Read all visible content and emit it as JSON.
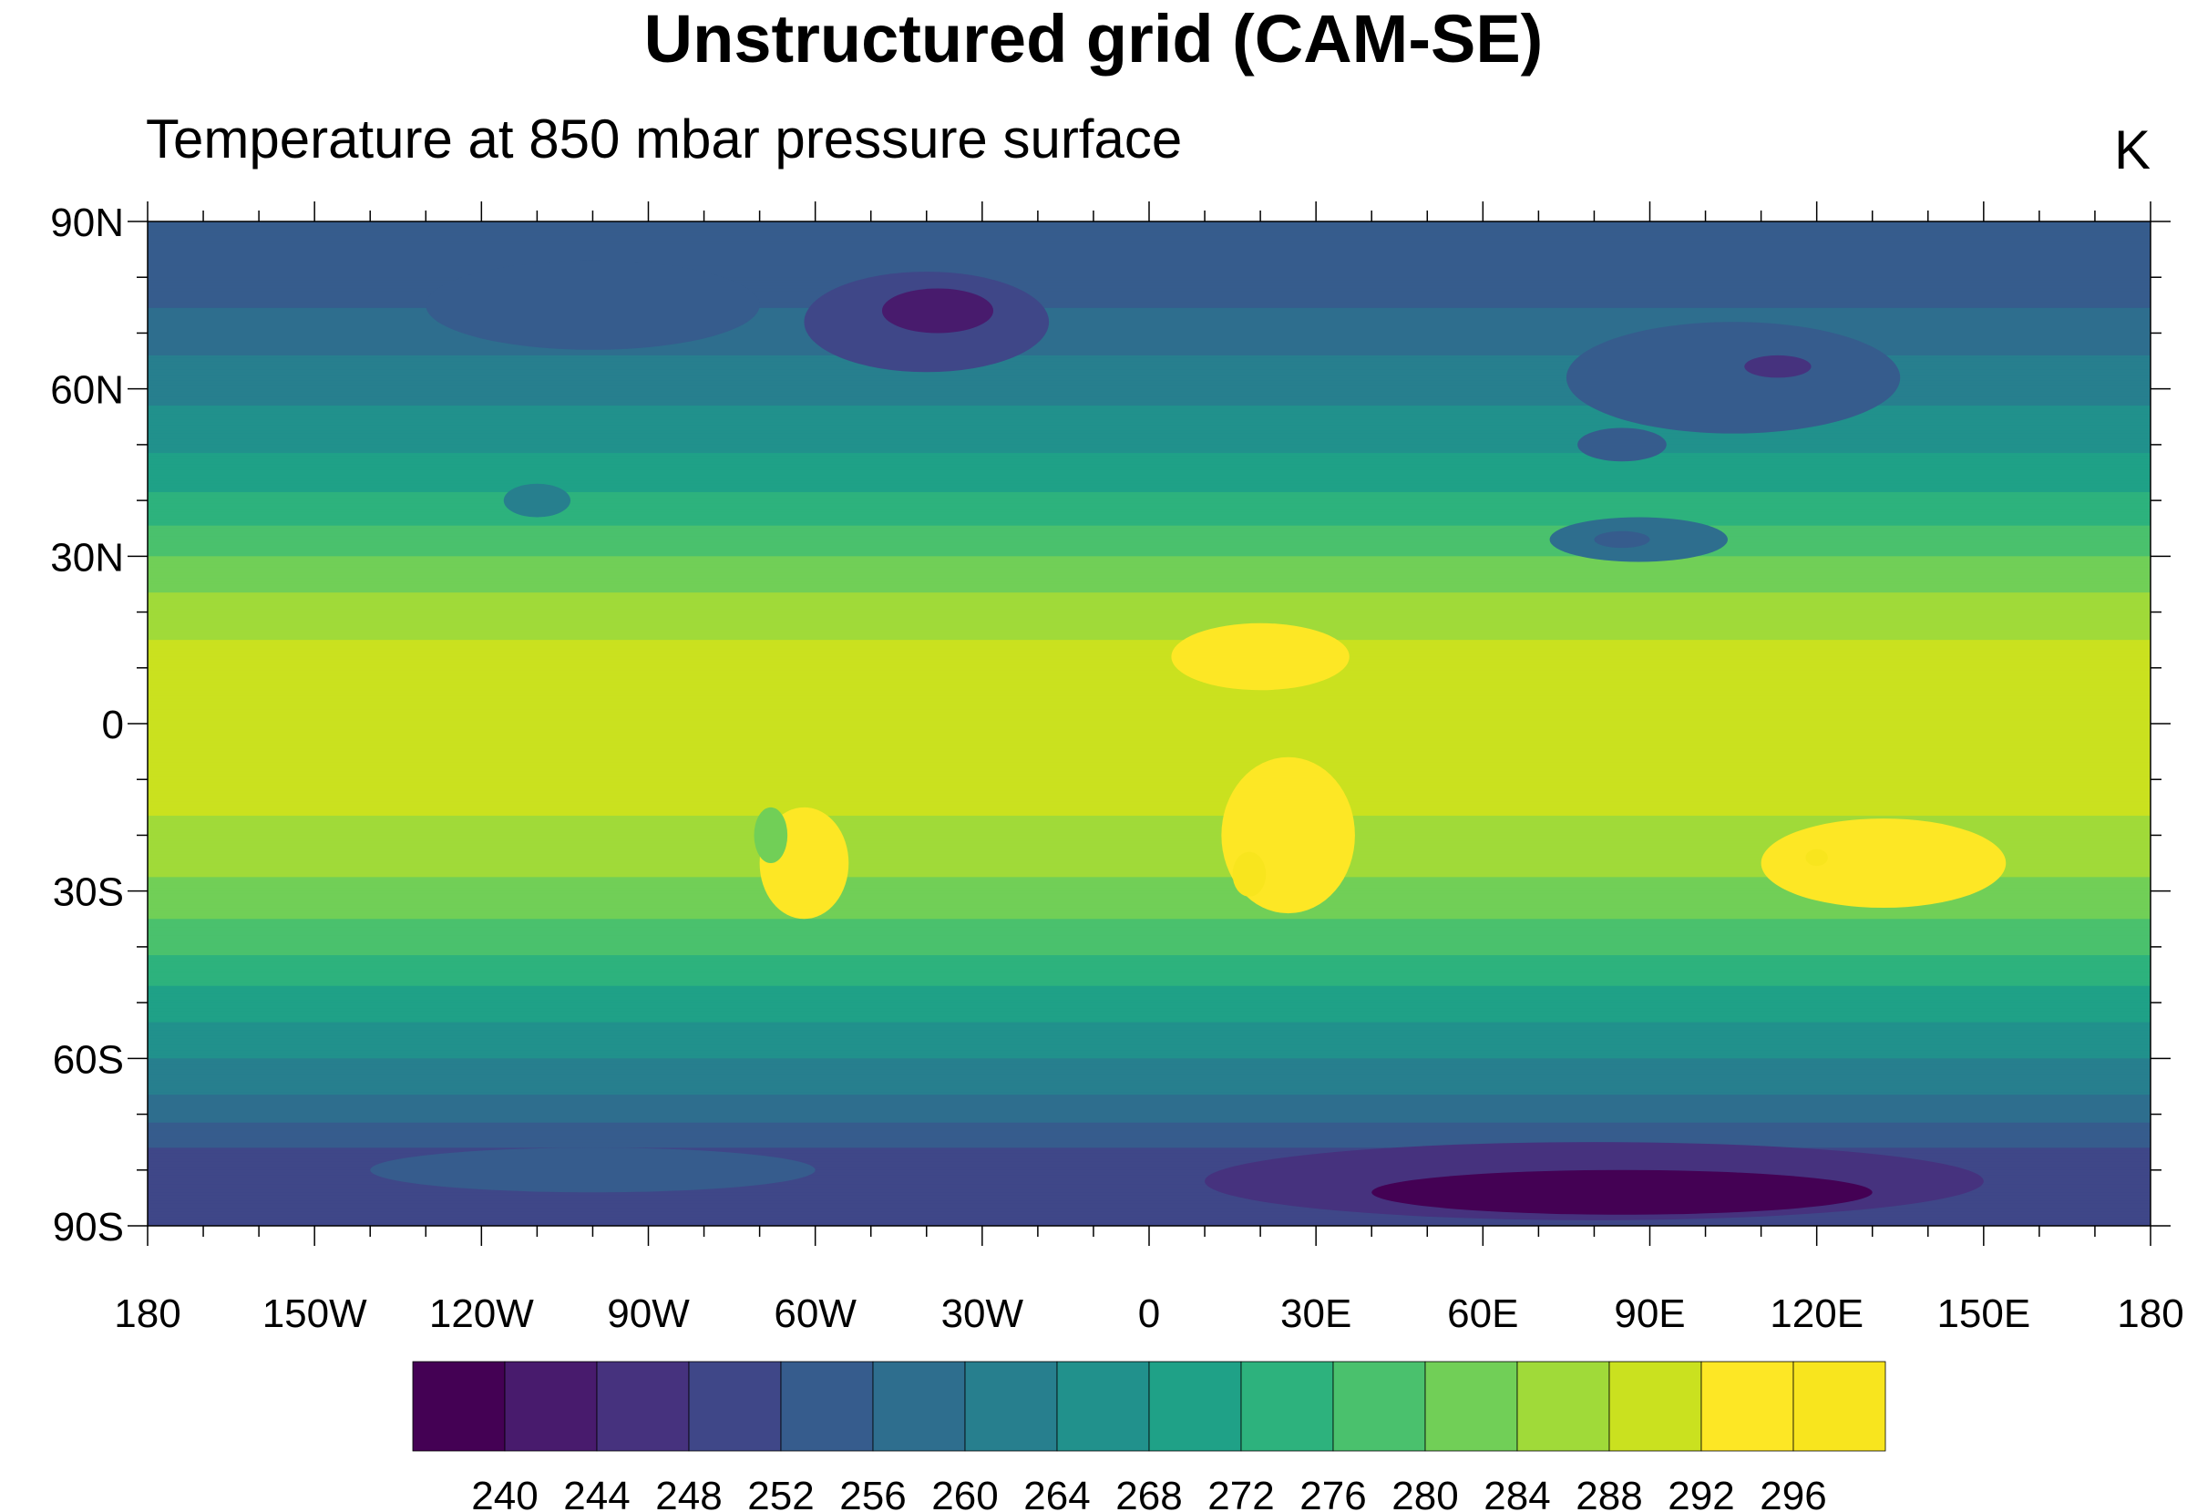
{
  "chart_data": {
    "type": "heatmap",
    "title": "Unstructured grid (CAM-SE)",
    "subtitle": "Temperature at 850 mbar pressure surface",
    "units": "K",
    "xlim": [
      -180,
      180
    ],
    "ylim": [
      -90,
      90
    ],
    "x_ticks": [
      {
        "value": -180,
        "label": "180"
      },
      {
        "value": -150,
        "label": "150W"
      },
      {
        "value": -120,
        "label": "120W"
      },
      {
        "value": -90,
        "label": "90W"
      },
      {
        "value": -60,
        "label": "60W"
      },
      {
        "value": -30,
        "label": "30W"
      },
      {
        "value": 0,
        "label": "0"
      },
      {
        "value": 30,
        "label": "30E"
      },
      {
        "value": 60,
        "label": "60E"
      },
      {
        "value": 90,
        "label": "90E"
      },
      {
        "value": 120,
        "label": "120E"
      },
      {
        "value": 150,
        "label": "150E"
      },
      {
        "value": 180,
        "label": "180"
      }
    ],
    "y_ticks": [
      {
        "value": 90,
        "label": "90N"
      },
      {
        "value": 60,
        "label": "60N"
      },
      {
        "value": 30,
        "label": "30N"
      },
      {
        "value": 0,
        "label": "0"
      },
      {
        "value": -30,
        "label": "30S"
      },
      {
        "value": -60,
        "label": "60S"
      },
      {
        "value": -90,
        "label": "90S"
      }
    ],
    "levels": [
      240,
      244,
      248,
      252,
      256,
      260,
      264,
      268,
      272,
      276,
      280,
      284,
      288,
      292,
      296
    ],
    "colors": [
      "#440154",
      "#481b6d",
      "#46327e",
      "#3f4788",
      "#365c8d",
      "#2e6e8e",
      "#277f8e",
      "#21918c",
      "#1fa187",
      "#2db27d",
      "#4ac16d",
      "#71cf57",
      "#a0da39",
      "#cae11f",
      "#fde725",
      "#f8e51e"
    ],
    "zonal_profile": [
      {
        "lat": 90,
        "t": 254
      },
      {
        "lat": 82,
        "t": 253
      },
      {
        "lat": 72,
        "t": 257
      },
      {
        "lat": 62,
        "t": 262
      },
      {
        "lat": 50,
        "t": 267
      },
      {
        "lat": 40,
        "t": 273
      },
      {
        "lat": 30,
        "t": 280
      },
      {
        "lat": 20,
        "t": 286
      },
      {
        "lat": 10,
        "t": 290
      },
      {
        "lat": 0,
        "t": 290.5
      },
      {
        "lat": -10,
        "t": 290
      },
      {
        "lat": -20,
        "t": 287
      },
      {
        "lat": -30,
        "t": 283
      },
      {
        "lat": -40,
        "t": 277
      },
      {
        "lat": -50,
        "t": 270
      },
      {
        "lat": -60,
        "t": 264
      },
      {
        "lat": -68,
        "t": 259
      },
      {
        "lat": -74,
        "t": 254
      },
      {
        "lat": -80,
        "t": 248
      },
      {
        "lat": -86,
        "t": 250
      },
      {
        "lat": -90,
        "t": 252
      }
    ],
    "features": [
      {
        "name": "greenland-cold",
        "lon": -40,
        "lat": 72,
        "dlon": 22,
        "dlat": 9,
        "t": 250
      },
      {
        "name": "greenland-core",
        "lon": -38,
        "lat": 74,
        "dlon": 10,
        "dlat": 4,
        "t": 243
      },
      {
        "name": "canada-cold",
        "lon": -100,
        "lat": 75,
        "dlon": 30,
        "dlat": 8,
        "t": 252
      },
      {
        "name": "rockies",
        "lon": -110,
        "lat": 40,
        "dlon": 6,
        "dlat": 3,
        "t": 262
      },
      {
        "name": "siberia-cold",
        "lon": 105,
        "lat": 62,
        "dlon": 30,
        "dlat": 10,
        "t": 252
      },
      {
        "name": "siberia-core",
        "lon": 113,
        "lat": 64,
        "dlon": 6,
        "dlat": 2,
        "t": 246
      },
      {
        "name": "mongolia",
        "lon": 85,
        "lat": 50,
        "dlon": 8,
        "dlat": 3,
        "t": 254
      },
      {
        "name": "tibet",
        "lon": 88,
        "lat": 33,
        "dlon": 16,
        "dlat": 4,
        "t": 258
      },
      {
        "name": "tibet-core",
        "lon": 85,
        "lat": 33,
        "dlon": 5,
        "dlat": 1.5,
        "t": 252
      },
      {
        "name": "sahel-warm",
        "lon": 20,
        "lat": 12,
        "dlon": 16,
        "dlat": 6,
        "t": 293
      },
      {
        "name": "southern-africa",
        "lon": 25,
        "lat": -20,
        "dlon": 12,
        "dlat": 14,
        "t": 292
      },
      {
        "name": "kalahari",
        "lon": 18,
        "lat": -27,
        "dlon": 3,
        "dlat": 4,
        "t": 296
      },
      {
        "name": "south-america",
        "lon": -62,
        "lat": -25,
        "dlon": 8,
        "dlat": 10,
        "t": 292
      },
      {
        "name": "andes-cold",
        "lon": -68,
        "lat": -20,
        "dlon": 3,
        "dlat": 5,
        "t": 282
      },
      {
        "name": "australia",
        "lon": 132,
        "lat": -25,
        "dlon": 22,
        "dlat": 8,
        "t": 292
      },
      {
        "name": "australia-core",
        "lon": 120,
        "lat": -24,
        "dlon": 2,
        "dlat": 1.5,
        "t": 296
      },
      {
        "name": "antarctica-east",
        "lon": 80,
        "lat": -82,
        "dlon": 70,
        "dlat": 7,
        "t": 244
      },
      {
        "name": "antarctica-core",
        "lon": 85,
        "lat": -84,
        "dlon": 45,
        "dlat": 4,
        "t": 239
      },
      {
        "name": "antarctica-west",
        "lon": -100,
        "lat": -80,
        "dlon": 40,
        "dlat": 4,
        "t": 252
      }
    ]
  }
}
